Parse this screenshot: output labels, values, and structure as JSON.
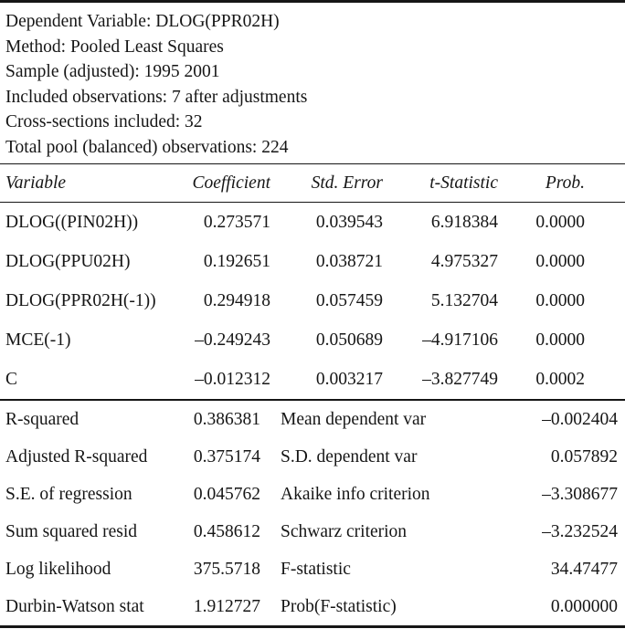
{
  "header": {
    "lines": [
      "Dependent Variable: DLOG(PPR02H)",
      "Method: Pooled Least Squares",
      "Sample (adjusted): 1995 2001",
      "Included observations: 7 after adjustments",
      "Cross-sections included: 32",
      "Total pool (balanced) observations: 224"
    ]
  },
  "coef_table": {
    "columns": [
      "Variable",
      "Coefficient",
      "Std. Error",
      "t-Statistic",
      "Prob."
    ],
    "rows": [
      {
        "variable": "DLOG((PIN02H))",
        "coefficient": "0.273571",
        "std_error": "0.039543",
        "t_statistic": "6.918384",
        "prob": "0.0000"
      },
      {
        "variable": "DLOG(PPU02H)",
        "coefficient": "0.192651",
        "std_error": "0.038721",
        "t_statistic": "4.975327",
        "prob": "0.0000"
      },
      {
        "variable": "DLOG(PPR02H(-1))",
        "coefficient": "0.294918",
        "std_error": "0.057459",
        "t_statistic": "5.132704",
        "prob": "0.0000"
      },
      {
        "variable": "MCE(-1)",
        "coefficient": "–0.249243",
        "std_error": "0.050689",
        "t_statistic": "–4.917106",
        "prob": "0.0000"
      },
      {
        "variable": "C",
        "coefficient": "–0.012312",
        "std_error": "0.003217",
        "t_statistic": "–3.827749",
        "prob": "0.0002"
      }
    ]
  },
  "summary_table": {
    "rows": [
      {
        "label_left": "R-squared",
        "value_left": "0.386381",
        "label_right": "Mean dependent var",
        "value_right": "–0.002404"
      },
      {
        "label_left": "Adjusted R-squared",
        "value_left": "0.375174",
        "label_right": "S.D. dependent var",
        "value_right": "0.057892"
      },
      {
        "label_left": "S.E. of regression",
        "value_left": "0.045762",
        "label_right": "Akaike info criterion",
        "value_right": "–3.308677"
      },
      {
        "label_left": "Sum squared resid",
        "value_left": "0.458612",
        "label_right": "Schwarz criterion",
        "value_right": "–3.232524"
      },
      {
        "label_left": "Log likelihood",
        "value_left": "375.5718",
        "label_right": "F-statistic",
        "value_right": "34.47477"
      },
      {
        "label_left": "Durbin-Watson stat",
        "value_left": "1.912727",
        "label_right": "Prob(F-statistic)",
        "value_right": "0.000000"
      }
    ]
  },
  "colors": {
    "text": "#161616",
    "background": "#ffffff",
    "rule": "#161616"
  }
}
